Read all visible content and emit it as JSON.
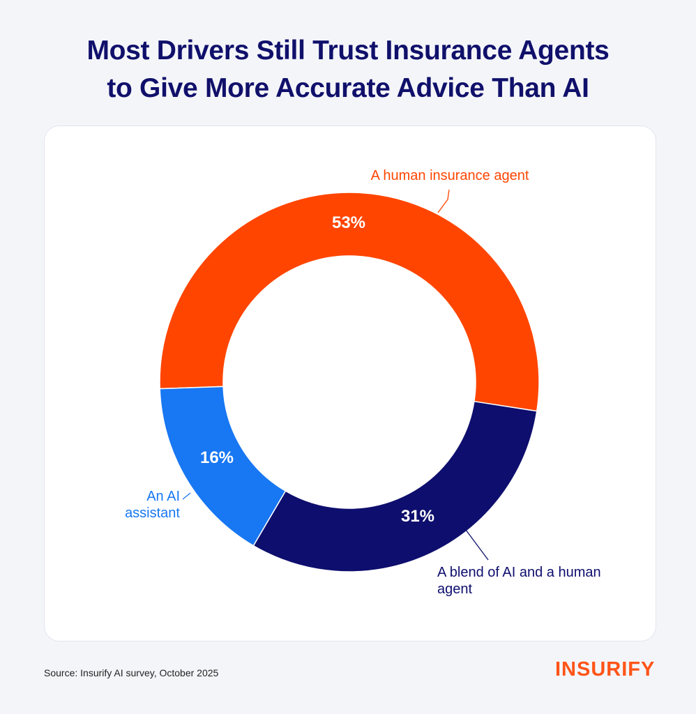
{
  "title_lines": [
    "Most Drivers Still Trust Insurance Agents",
    "to Give More Accurate Advice Than AI"
  ],
  "chart_data": {
    "type": "donut",
    "categories": [
      "A human insurance agent",
      "A blend of AI and a human agent",
      "An AI assistant"
    ],
    "values": [
      53,
      31,
      16
    ],
    "value_labels": [
      "53%",
      "31%",
      "16%"
    ],
    "colors": [
      "#ff4500",
      "#0e0e6e",
      "#1877f2"
    ],
    "label_colors": [
      "#ff4500",
      "#0e0e6e",
      "#1877f2"
    ],
    "label_lines": [
      [
        "A human insurance agent"
      ],
      [
        "A blend of AI and a human",
        "agent"
      ],
      [
        "An AI",
        "assistant"
      ]
    ],
    "legend": "none"
  },
  "source": "Source: Insurify AI survey, October 2025",
  "logo": "INSURIFY"
}
